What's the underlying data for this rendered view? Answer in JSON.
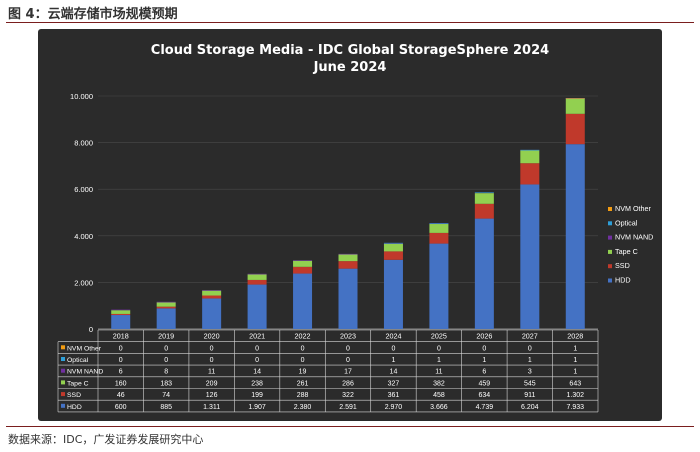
{
  "figure_caption": "图 4：云端存储市场规模预期",
  "source_note": "数据来源：IDC，广发证券发展研究中心",
  "colors": {
    "background": "#2b2b2b",
    "HDD": "#4472c4",
    "SSD": "#c0392b",
    "Tape C": "#92d050",
    "NVM NAND": "#7030a0",
    "Optical": "#2e9fd8",
    "NVM Other": "#f39c12"
  },
  "chart_data": {
    "type": "bar",
    "stacked": true,
    "title": "Cloud Storage Media - IDC Global StorageSphere 2024",
    "subtitle": "June 2024",
    "categories": [
      "2018",
      "2019",
      "2020",
      "2021",
      "2022",
      "2023",
      "2024",
      "2025",
      "2026",
      "2027",
      "2028"
    ],
    "ylim": [
      0,
      10000
    ],
    "yticks": [
      0,
      2000,
      4000,
      6000,
      8000,
      10000
    ],
    "ytick_labels": [
      "0",
      "2.000",
      "4.000",
      "6.000",
      "8.000",
      "10.000"
    ],
    "legend_position": "right",
    "series": [
      {
        "name": "HDD",
        "values": [
          600,
          885,
          1311,
          1907,
          2380,
          2591,
          2970,
          3666,
          4739,
          6204,
          7933
        ],
        "labels": [
          "600",
          "885",
          "1.311",
          "1.907",
          "2.380",
          "2.591",
          "2.970",
          "3.666",
          "4.739",
          "6.204",
          "7.933"
        ]
      },
      {
        "name": "SSD",
        "values": [
          46,
          74,
          126,
          199,
          288,
          322,
          361,
          458,
          634,
          911,
          1302
        ],
        "labels": [
          "46",
          "74",
          "126",
          "199",
          "288",
          "322",
          "361",
          "458",
          "634",
          "911",
          "1.302"
        ]
      },
      {
        "name": "Tape C",
        "values": [
          160,
          183,
          209,
          238,
          261,
          286,
          327,
          382,
          459,
          545,
          643
        ],
        "labels": [
          "160",
          "183",
          "209",
          "238",
          "261",
          "286",
          "327",
          "382",
          "459",
          "545",
          "643"
        ]
      },
      {
        "name": "NVM NAND",
        "values": [
          6,
          8,
          11,
          14,
          19,
          17,
          14,
          11,
          6,
          3,
          1
        ],
        "labels": [
          "6",
          "8",
          "11",
          "14",
          "19",
          "17",
          "14",
          "11",
          "6",
          "3",
          "1"
        ]
      },
      {
        "name": "Optical",
        "values": [
          0,
          0,
          0,
          0,
          0,
          0,
          1,
          1,
          1,
          1,
          1
        ],
        "labels": [
          "0",
          "0",
          "0",
          "0",
          "0",
          "0",
          "1",
          "1",
          "1",
          "1",
          "1"
        ]
      },
      {
        "name": "NVM Other",
        "values": [
          0,
          0,
          0,
          0,
          0,
          0,
          0,
          0,
          0,
          0,
          1
        ],
        "labels": [
          "0",
          "0",
          "0",
          "0",
          "0",
          "0",
          "0",
          "0",
          "0",
          "0",
          "1"
        ]
      }
    ],
    "table_row_order": [
      "NVM Other",
      "Optical",
      "NVM NAND",
      "Tape C",
      "SSD",
      "HDD"
    ],
    "legend_order": [
      "NVM Other",
      "Optical",
      "NVM NAND",
      "Tape C",
      "SSD",
      "HDD"
    ]
  }
}
